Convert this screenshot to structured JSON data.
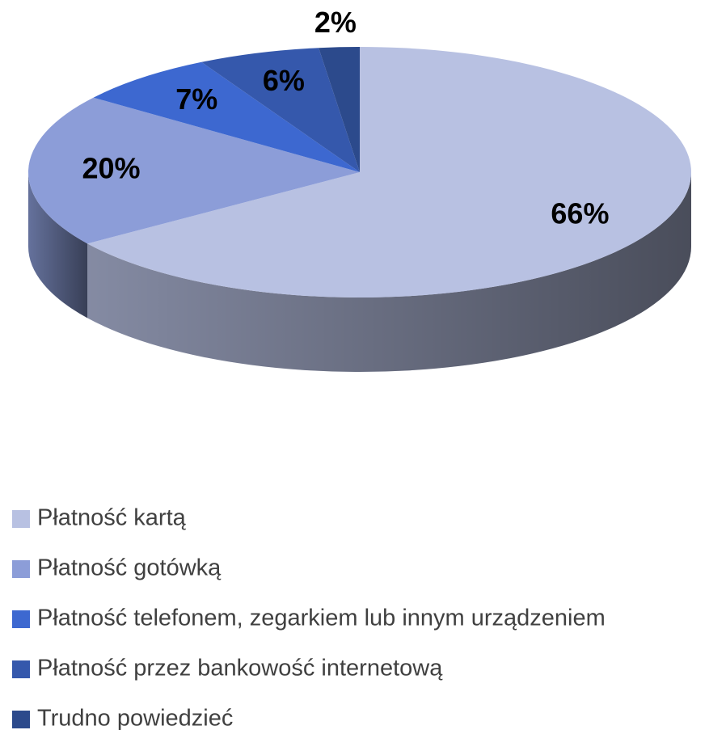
{
  "chart_data": {
    "type": "pie",
    "categories": [
      "Płatność kartą",
      "Płatność gotówką",
      "Płatność telefonem, zegarkiem lub innym urządzeniem",
      "Płatność przez bankowość internetową",
      "Trudno powiedzieć"
    ],
    "values": [
      66,
      20,
      7,
      6,
      2
    ],
    "value_labels": [
      "66%",
      "20%",
      "7%",
      "6%",
      "2%"
    ],
    "colors": [
      "#b8c1e2",
      "#8c9dd8",
      "#3d68d0",
      "#3558ac",
      "#2c4a8c"
    ],
    "legend": "bottom"
  }
}
